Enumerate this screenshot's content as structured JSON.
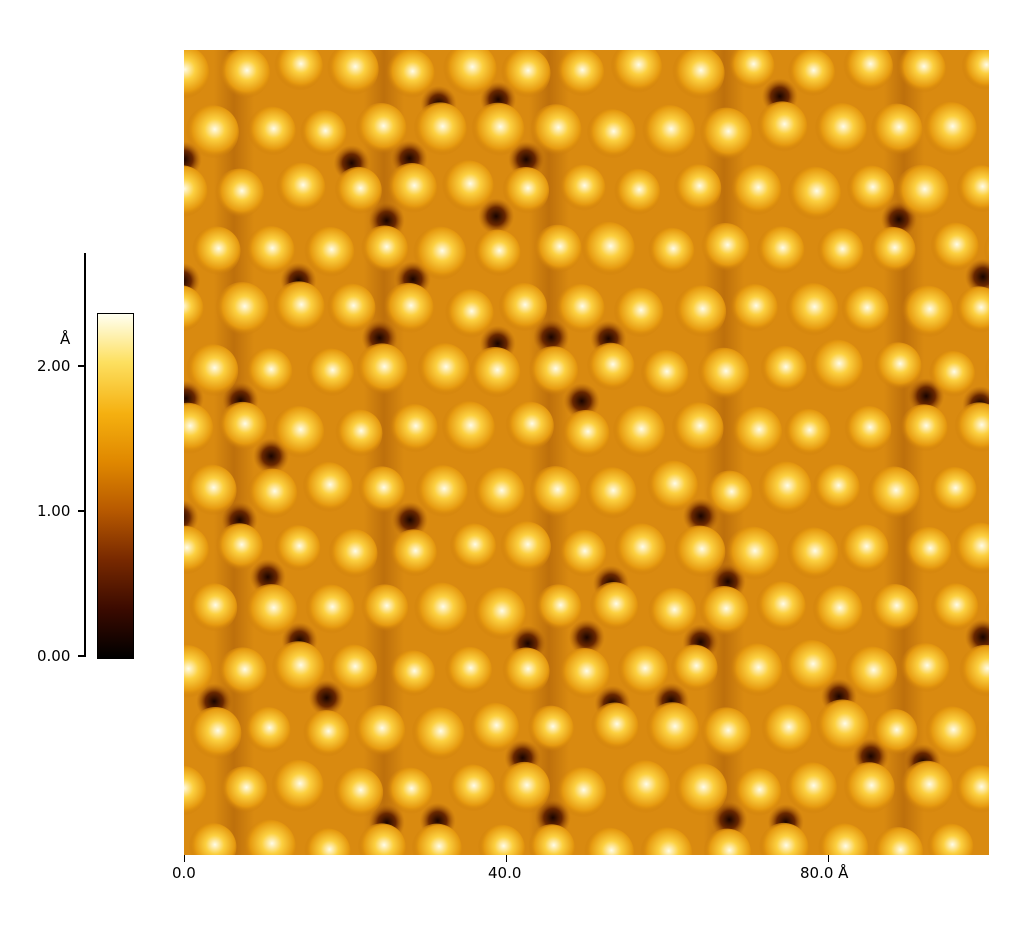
{
  "colorbar": {
    "unit": "Å",
    "ticks": [
      "2.00",
      "1.00",
      "0.00"
    ],
    "range": [
      0,
      2.35
    ],
    "colors": [
      "#000000",
      "#3a0a00",
      "#7a2a00",
      "#b85a00",
      "#e08800",
      "#f5b010",
      "#fde060",
      "#fffff0"
    ]
  },
  "x_axis": {
    "ticks": [
      "0.0",
      "40.0",
      "80.0 Å"
    ],
    "range": [
      0,
      100
    ]
  },
  "image": {
    "type": "stm-topography",
    "base_color": "#d98a10"
  }
}
